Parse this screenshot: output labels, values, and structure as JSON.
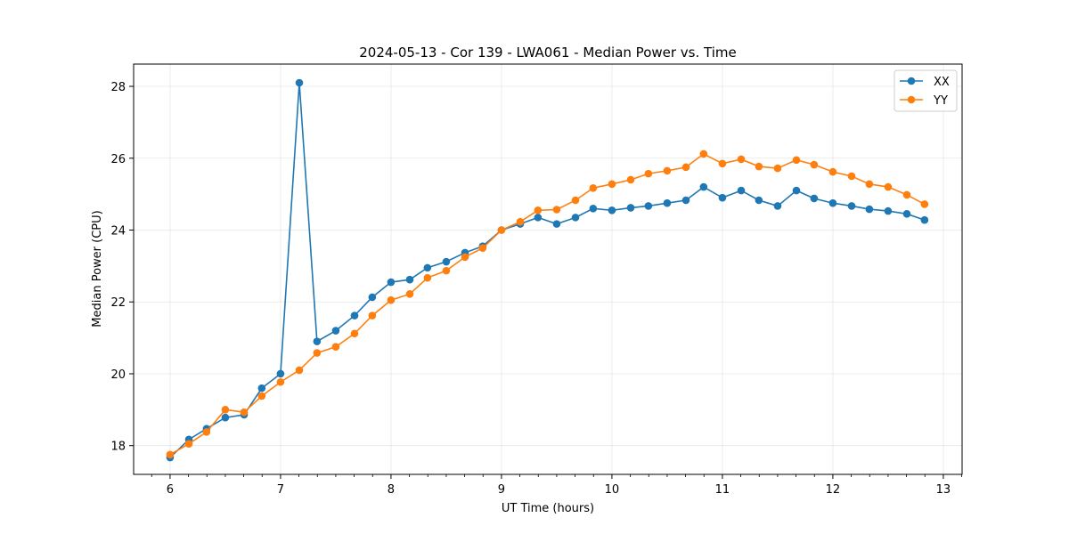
{
  "chart_data": {
    "type": "line",
    "title": "2024-05-13 - Cor 139 - LWA061 - Median Power vs. Time",
    "xlabel": "UT Time (hours)",
    "ylabel": "Median Power (CPU)",
    "xlim": [
      5.67,
      13.17
    ],
    "ylim": [
      17.2,
      28.62
    ],
    "x_ticks": [
      6,
      7,
      8,
      9,
      10,
      11,
      12,
      13
    ],
    "y_ticks": [
      18,
      20,
      22,
      24,
      26,
      28
    ],
    "grid": true,
    "legend_position": "top-right",
    "x": [
      6.0,
      6.17,
      6.33,
      6.5,
      6.67,
      6.83,
      7.0,
      7.17,
      7.33,
      7.5,
      7.67,
      7.83,
      8.0,
      8.17,
      8.33,
      8.5,
      8.67,
      8.83,
      9.0,
      9.17,
      9.33,
      9.5,
      9.67,
      9.83,
      10.0,
      10.17,
      10.33,
      10.5,
      10.67,
      10.83,
      11.0,
      11.17,
      11.33,
      11.5,
      11.67,
      11.83,
      12.0,
      12.17,
      12.33,
      12.5,
      12.67,
      12.83
    ],
    "series": [
      {
        "name": "XX",
        "color": "#1f77b4",
        "values": [
          17.67,
          18.17,
          18.47,
          18.78,
          18.86,
          19.6,
          20.0,
          28.1,
          20.9,
          21.2,
          21.62,
          22.13,
          22.55,
          22.62,
          22.95,
          23.12,
          23.37,
          23.55,
          24.0,
          24.17,
          24.35,
          24.17,
          24.35,
          24.6,
          24.55,
          24.62,
          24.67,
          24.75,
          24.83,
          25.2,
          24.9,
          25.1,
          24.83,
          24.67,
          25.1,
          24.88,
          24.75,
          24.67,
          24.58,
          24.53,
          24.45,
          24.28
        ]
      },
      {
        "name": "YY",
        "color": "#ff7f0e",
        "values": [
          17.75,
          18.05,
          18.38,
          19.0,
          18.93,
          19.38,
          19.77,
          20.1,
          20.58,
          20.75,
          21.12,
          21.62,
          22.05,
          22.22,
          22.67,
          22.87,
          23.25,
          23.5,
          24.0,
          24.23,
          24.55,
          24.57,
          24.83,
          25.17,
          25.28,
          25.4,
          25.57,
          25.65,
          25.75,
          26.12,
          25.85,
          25.97,
          25.77,
          25.72,
          25.95,
          25.82,
          25.62,
          25.5,
          25.28,
          25.2,
          24.98,
          24.72
        ]
      }
    ]
  }
}
